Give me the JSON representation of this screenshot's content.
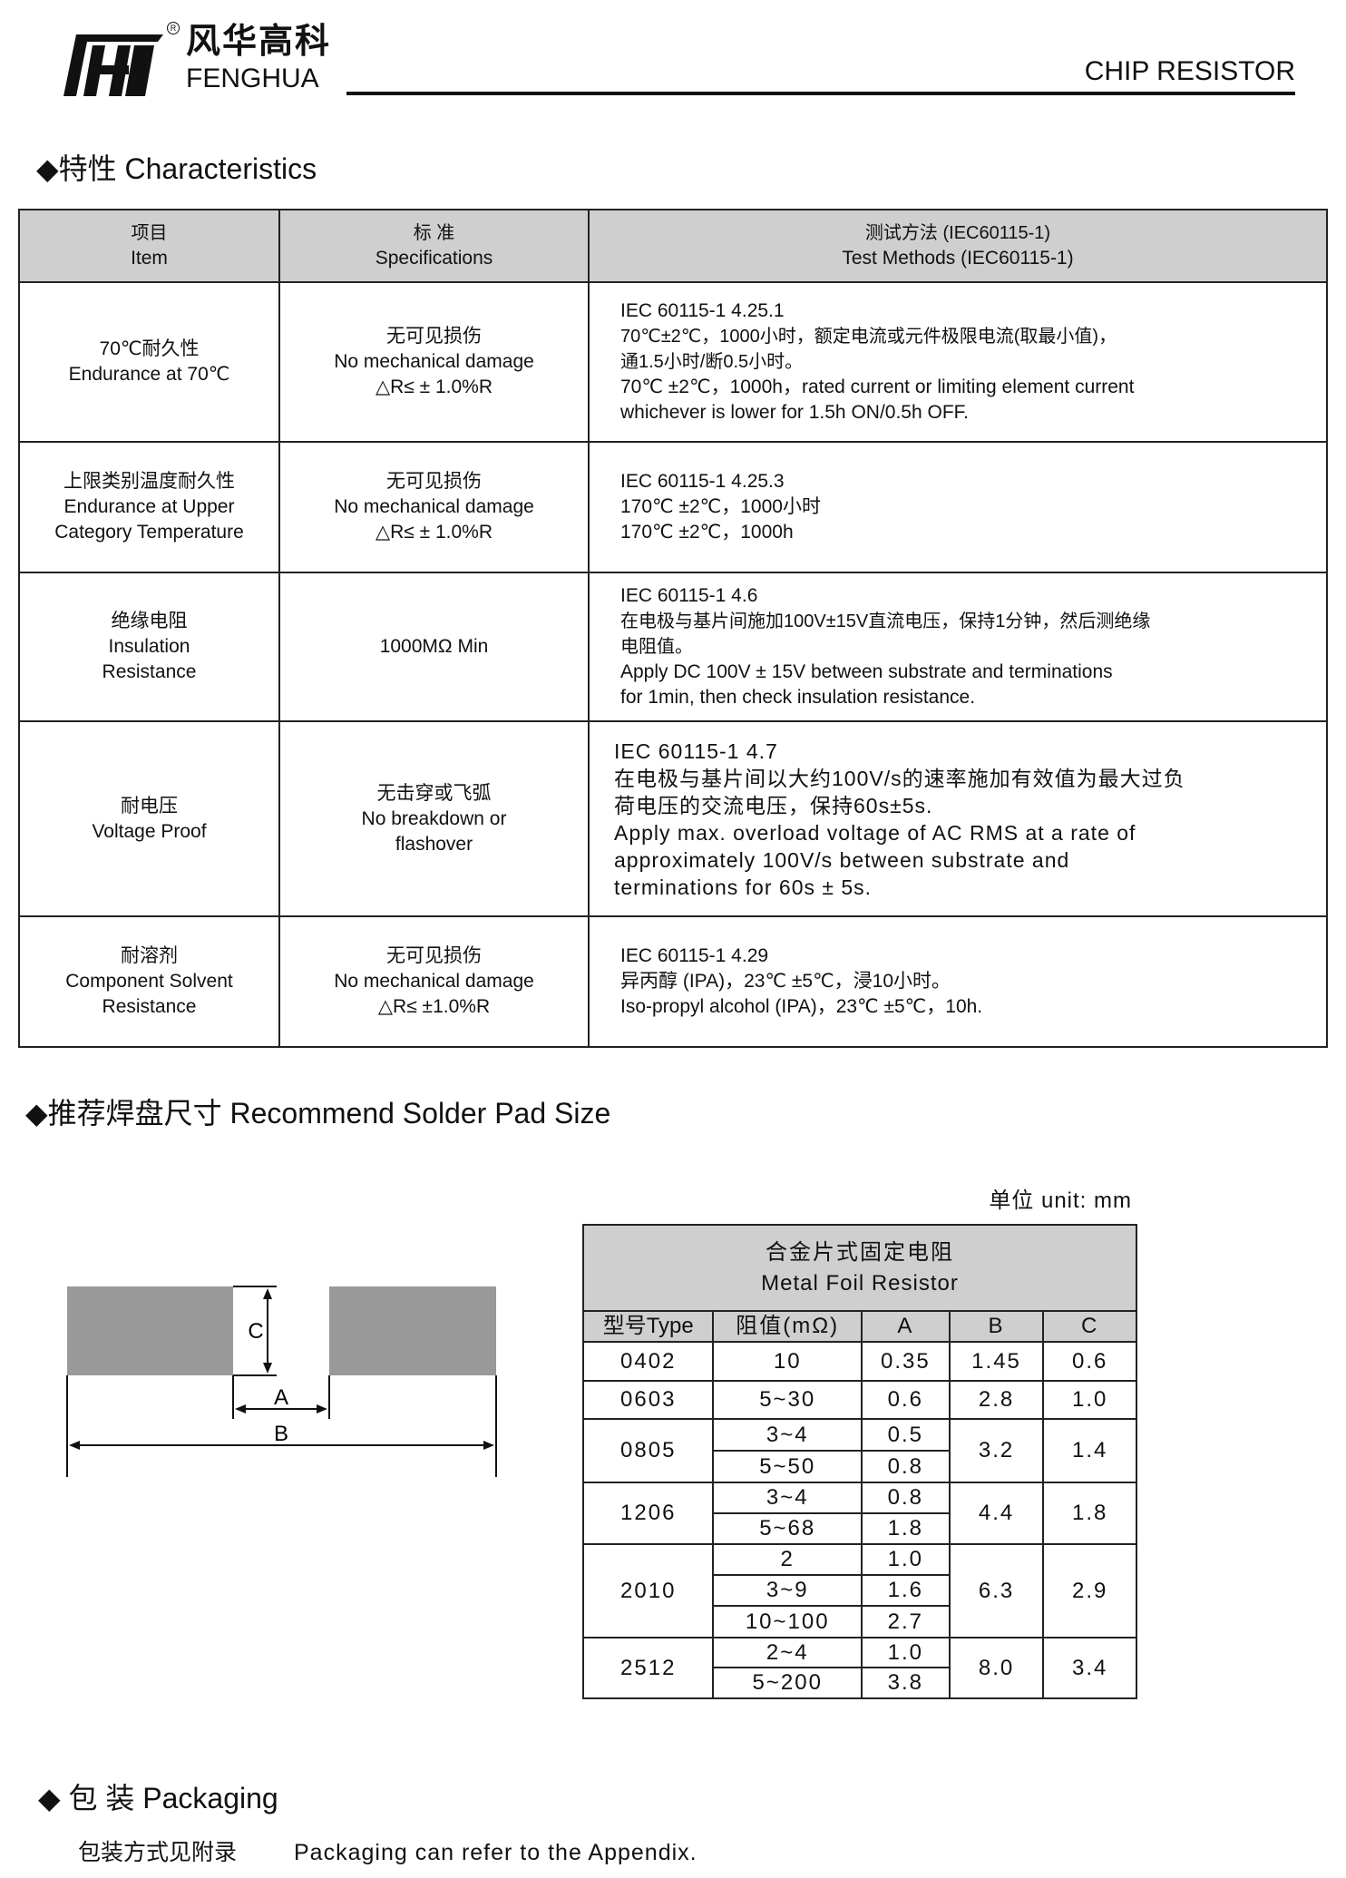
{
  "header": {
    "logo_cn": "风华高科",
    "logo_en": "FENGHUA",
    "registered_mark": "R",
    "doc_title": "CHIP RESISTOR"
  },
  "characteristics": {
    "heading": "◆特性  Characteristics",
    "columns": [
      {
        "cn": "项目",
        "en": "Item"
      },
      {
        "cn": "标 准",
        "en": "Specifications"
      },
      {
        "cn": "测试方法 (IEC60115-1)",
        "en": "Test Methods  (IEC60115-1)"
      }
    ],
    "rows": [
      {
        "item": [
          "70℃耐久性",
          "Endurance at 70℃"
        ],
        "spec": [
          "无可见损伤",
          "No mechanical damage",
          "△R≤ ± 1.0%R"
        ],
        "method": [
          "IEC 60115-1 4.25.1",
          "70℃±2℃，1000小时，额定电流或元件极限电流(取最小值)，",
          "通1.5小时/断0.5小时。",
          "70℃ ±2℃，1000h，rated current or limiting element current",
          "whichever is lower for 1.5h ON/0.5h OFF."
        ]
      },
      {
        "item": [
          "上限类别温度耐久性",
          "Endurance at Upper",
          "Category Temperature"
        ],
        "spec": [
          "无可见损伤",
          "No mechanical damage",
          "△R≤ ± 1.0%R"
        ],
        "method": [
          "IEC 60115-1 4.25.3",
          "170℃ ±2℃，1000小时",
          "170℃ ±2℃，1000h"
        ]
      },
      {
        "item": [
          "绝缘电阻",
          "Insulation",
          "Resistance"
        ],
        "spec": [
          "1000MΩ  Min"
        ],
        "method": [
          "IEC 60115-1 4.6",
          "在电极与基片间施加100V±15V直流电压，保持1分钟，然后测绝缘",
          "电阻值。",
          "Apply DC 100V ± 15V between substrate and terminations",
          "for 1min, then check insulation resistance."
        ]
      },
      {
        "item": [
          "耐电压",
          "Voltage Proof"
        ],
        "spec": [
          "无击穿或飞弧",
          "No breakdown or",
          "flashover"
        ],
        "method": [
          "IEC 60115-1 4.7",
          "在电极与基片间以大约100V/s的速率施加有效值为最大过负",
          "荷电压的交流电压，保持60s±5s.",
          "Apply max. overload voltage of AC RMS at a rate of",
          "approximately 100V/s between substrate and",
          "terminations for 60s ± 5s."
        ]
      },
      {
        "item": [
          "耐溶剂",
          "Component  Solvent",
          "Resistance"
        ],
        "spec": [
          "无可见损伤",
          "No mechanical damage",
          "△R≤ ±1.0%R"
        ],
        "method": [
          "IEC 60115-1 4.29",
          "异丙醇 (IPA)，23℃ ±5℃，浸10小时。",
          "Iso-propyl alcohol (IPA)，23℃ ±5℃，10h."
        ]
      }
    ]
  },
  "solder_pad": {
    "heading": "◆推荐焊盘尺寸 Recommend Solder Pad Size",
    "unit": "单位  unit: mm",
    "diagram_labels": {
      "a": "A",
      "b": "B",
      "c": "C"
    },
    "table_title_cn": "合金片式固定电阻",
    "table_title_en": "Metal Foil Resistor",
    "columns": [
      "型号Type",
      "阻值(mΩ)",
      "A",
      "B",
      "C"
    ],
    "rows": [
      {
        "type": "0402",
        "sub": [
          {
            "r": "10",
            "a": "0.35"
          }
        ],
        "b": "1.45",
        "c": "0.6"
      },
      {
        "type": "0603",
        "sub": [
          {
            "r": "5~30",
            "a": "0.6"
          }
        ],
        "b": "2.8",
        "c": "1.0"
      },
      {
        "type": "0805",
        "sub": [
          {
            "r": "3~4",
            "a": "0.5"
          },
          {
            "r": "5~50",
            "a": "0.8"
          }
        ],
        "b": "3.2",
        "c": "1.4"
      },
      {
        "type": "1206",
        "sub": [
          {
            "r": "3~4",
            "a": "0.8"
          },
          {
            "r": "5~68",
            "a": "1.8"
          }
        ],
        "b": "4.4",
        "c": "1.8"
      },
      {
        "type": "2010",
        "sub": [
          {
            "r": "2",
            "a": "1.0"
          },
          {
            "r": "3~9",
            "a": "1.6"
          },
          {
            "r": "10~100",
            "a": "2.7"
          }
        ],
        "b": "6.3",
        "c": "2.9"
      },
      {
        "type": "2512",
        "sub": [
          {
            "r": "2~4",
            "a": "1.0"
          },
          {
            "r": "5~200",
            "a": "3.8"
          }
        ],
        "b": "8.0",
        "c": "3.4"
      }
    ]
  },
  "packaging": {
    "heading": "◆ 包  装   Packaging",
    "label_cn": "包装方式见附录",
    "text_en": "Packaging can refer to the Appendix."
  }
}
